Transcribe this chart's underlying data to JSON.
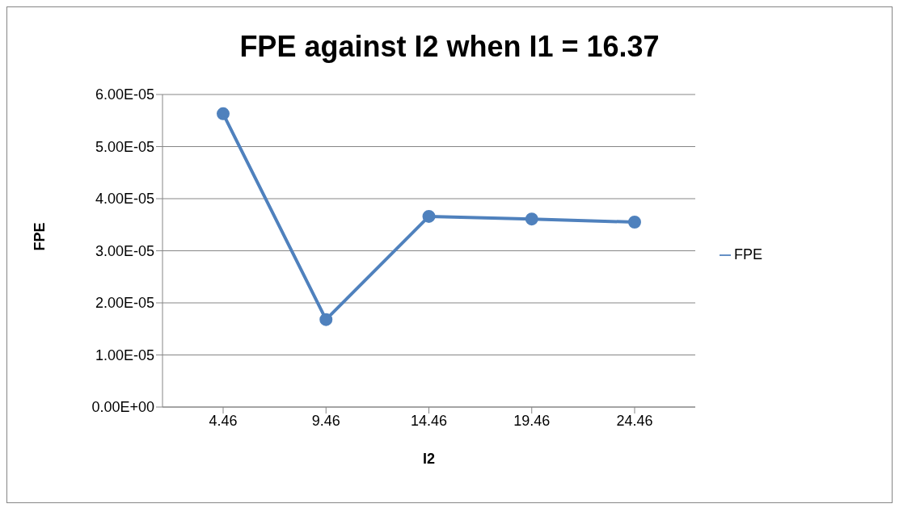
{
  "chart_data": {
    "type": "line",
    "title": "FPE against I2 when I1 = 16.37",
    "xlabel": "I2",
    "ylabel": "FPE",
    "categories": [
      "4.46",
      "9.46",
      "14.46",
      "19.46",
      "24.46"
    ],
    "series": [
      {
        "name": "FPE",
        "color": "#4f81bd",
        "values": [
          5.63e-05,
          1.68e-05,
          3.66e-05,
          3.61e-05,
          3.55e-05
        ]
      }
    ],
    "ylim": [
      0,
      6e-05
    ],
    "yticks": [
      {
        "value": 0,
        "label": "0.00E+00"
      },
      {
        "value": 1e-05,
        "label": "1.00E-05"
      },
      {
        "value": 2e-05,
        "label": "2.00E-05"
      },
      {
        "value": 3e-05,
        "label": "3.00E-05"
      },
      {
        "value": 4e-05,
        "label": "4.00E-05"
      },
      {
        "value": 5e-05,
        "label": "5.00E-05"
      },
      {
        "value": 6e-05,
        "label": "6.00E-05"
      }
    ],
    "grid": "y",
    "legend": "right",
    "marker": "circle",
    "line_style": "solid"
  }
}
